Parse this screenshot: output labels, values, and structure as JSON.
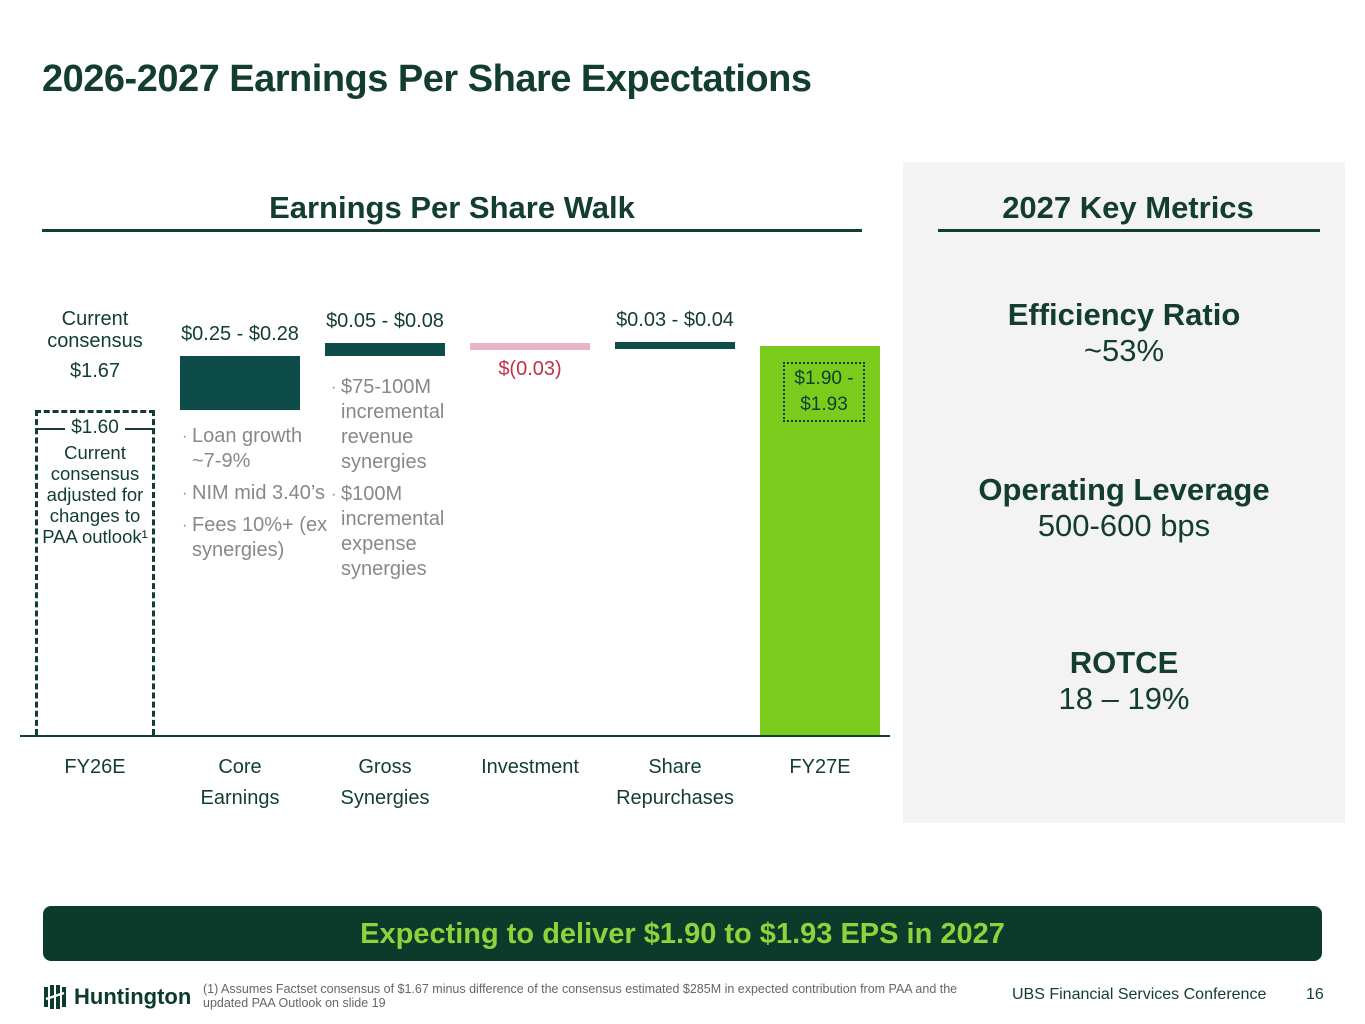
{
  "title": "2026-2027 Earnings Per Share Expectations",
  "left_header": "Earnings Per Share Walk",
  "right_header": "2027 Key Metrics",
  "metrics": [
    {
      "name": "Efficiency Ratio",
      "value": "~53%"
    },
    {
      "name": "Operating Leverage",
      "value": "500-600 bps"
    },
    {
      "name": "ROTCE",
      "value": "18 – 19%"
    }
  ],
  "chart_data": {
    "type": "waterfall",
    "categories": [
      "FY26E",
      "Core Earnings",
      "Gross Synergies",
      "Investment",
      "Share Repurchases",
      "FY27E"
    ],
    "category_lines": [
      [
        "FY26E"
      ],
      [
        "Core",
        "Earnings"
      ],
      [
        "Gross",
        "Synergies"
      ],
      [
        "Investment"
      ],
      [
        "Share",
        "Repurchases"
      ],
      [
        "FY27E"
      ]
    ],
    "values": [
      1.6,
      0.265,
      0.065,
      -0.03,
      0.035,
      1.915
    ],
    "ranges": [
      [
        1.6,
        1.6
      ],
      [
        0.25,
        0.28
      ],
      [
        0.05,
        0.08
      ],
      [
        -0.03,
        -0.03
      ],
      [
        0.03,
        0.04
      ],
      [
        1.9,
        1.93
      ]
    ],
    "data_labels": [
      "$1.60",
      "$0.25 - $0.28",
      "$0.05 - $0.08",
      "$(0.03)",
      "$0.03 - $0.04",
      "$1.90 - $1.93"
    ],
    "ylim": [
      0,
      1.95
    ],
    "consensus_label": "Current consensus",
    "consensus_value": "$1.67",
    "adjusted_note": "Current consensus adjusted for changes to PAA outlook¹",
    "core_bullets": [
      "Loan growth ~7-9%",
      "NIM mid 3.40’s",
      "Fees 10%+ (ex synergies)"
    ],
    "synergy_bullets": [
      "$75-100M incremental revenue synergies",
      "$100M incremental expense synergies"
    ],
    "colors": {
      "dark": "#0e4c4a",
      "negative": "#e8b6c3",
      "negative_text": "#c0304a",
      "total": "#7acc1c"
    }
  },
  "banner": "Expecting to deliver $1.90 to $1.93 EPS in 2027",
  "footer": {
    "logo": "Huntington",
    "note": "(1) Assumes Factset consensus of $1.67 minus difference of the consensus estimated $285M in expected contribution from PAA and the updated PAA Outlook on slide 19",
    "conference": "UBS Financial Services Conference",
    "page": "16"
  }
}
